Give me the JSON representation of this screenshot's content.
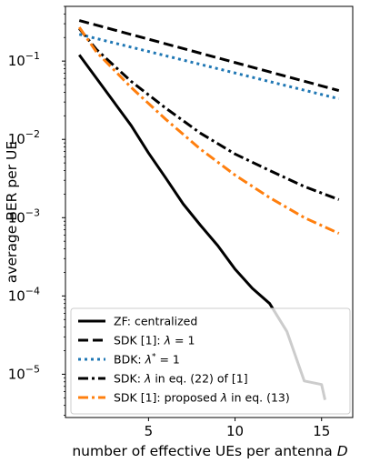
{
  "chart_data": {
    "type": "line",
    "xlabel": "number of effective UEs per antenna D",
    "ylabel": "average BER per UE",
    "yscale": "log",
    "xlim": [
      0.2,
      16.8
    ],
    "ylim": [
      2.8e-06,
      0.5
    ],
    "xticks": [
      5,
      10,
      15
    ],
    "yticks": [
      {
        "value": 1e-05,
        "base": "10",
        "exp": "−5"
      },
      {
        "value": 0.0001,
        "base": "10",
        "exp": "−4"
      },
      {
        "value": 0.001,
        "base": "10",
        "exp": "−3"
      },
      {
        "value": 0.01,
        "base": "10",
        "exp": "−2"
      },
      {
        "value": 0.1,
        "base": "10",
        "exp": "−1"
      }
    ],
    "grid": false,
    "legend_position": "lower-left",
    "series": [
      {
        "name": "ZF: centralized",
        "color": "#000000",
        "dash": "solid",
        "x": [
          1,
          2,
          3,
          4,
          5,
          6,
          7,
          8,
          9,
          10,
          11,
          12,
          13,
          14,
          15,
          15.2
        ],
        "y": [
          0.12,
          0.06,
          0.03,
          0.015,
          0.0067,
          0.0032,
          0.0015,
          0.0008,
          0.00044,
          0.00022,
          0.000125,
          8e-05,
          3.5e-05,
          8.2e-06,
          7.4e-06,
          4.7e-06
        ]
      },
      {
        "name": "SDK [1]: λ = 1",
        "color": "#000000",
        "dash": "dashed",
        "x": [
          1,
          16
        ],
        "y": [
          0.33,
          0.042
        ]
      },
      {
        "name": "BDK: λ* = 1",
        "color": "#1f77b4",
        "dash": "dotted",
        "x": [
          1,
          16
        ],
        "y": [
          0.22,
          0.033
        ]
      },
      {
        "name": "SDK: λ in eq. (22) of [1]",
        "color": "#000000",
        "dash": "dashdot",
        "x": [
          1,
          2,
          4,
          6,
          8,
          10,
          12,
          14,
          16
        ],
        "y": [
          0.26,
          0.14,
          0.055,
          0.025,
          0.012,
          0.0065,
          0.004,
          0.0025,
          0.0017
        ]
      },
      {
        "name": "SDK [1]: proposed λ in eq. (13)",
        "color": "#ff7f0e",
        "dash": "dashdot",
        "x": [
          1,
          2,
          4,
          6,
          8,
          10,
          12,
          14,
          16
        ],
        "y": [
          0.27,
          0.13,
          0.046,
          0.018,
          0.0075,
          0.0035,
          0.0018,
          0.001,
          0.00063
        ]
      }
    ]
  },
  "legend": {
    "zf": "ZF: centralized",
    "sdk1_pre": "SDK [1]: ",
    "sdk1_lambda": "λ",
    "sdk1_post": " = 1",
    "bdk_pre": "BDK: ",
    "bdk_lambda": "λ",
    "bdk_star": "*",
    "bdk_post": " = 1",
    "sdk22_pre": "SDK: ",
    "sdk22_lambda": "λ",
    "sdk22_post": " in eq. (22) of [1]",
    "sdk13_pre": "SDK [1]: proposed ",
    "sdk13_lambda": "λ",
    "sdk13_post": " in eq. (13)"
  },
  "axes": {
    "xlabel_main": "number of effective UEs per antenna ",
    "xlabel_var": "D",
    "ylabel": "average BER per UE"
  }
}
